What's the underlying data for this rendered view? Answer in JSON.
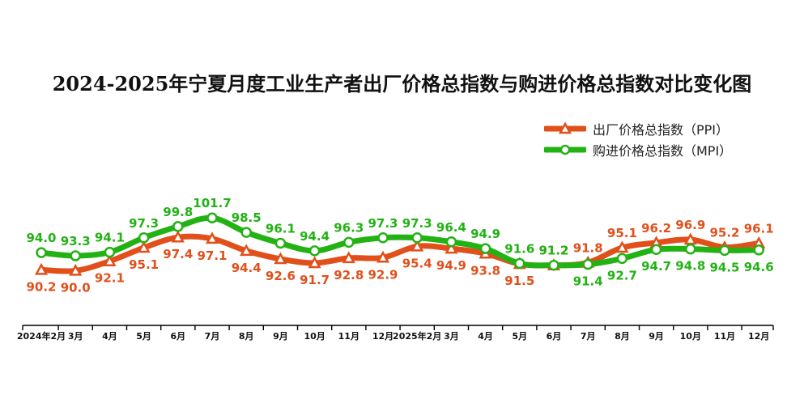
{
  "chart_data": {
    "type": "line",
    "title": "2024-2025年宁夏月度工业生产者出厂价格总指数与购进价格总指数对比变化图",
    "xlabel": "",
    "ylabel": "",
    "categories": [
      "2024年2月",
      "3月",
      "4月",
      "5月",
      "6月",
      "7月",
      "8月",
      "9月",
      "10月",
      "11月",
      "12月",
      "2025年2月",
      "3月",
      "4月",
      "5月",
      "6月",
      "7月",
      "8月",
      "9月",
      "10月",
      "11月",
      "12月"
    ],
    "series": [
      {
        "name": "出厂价格总指数（PPI）",
        "marker": "triangle",
        "color": "#e1501b",
        "values": [
          90.2,
          90.0,
          92.1,
          95.1,
          97.4,
          97.1,
          94.4,
          92.6,
          91.7,
          92.8,
          92.9,
          95.4,
          94.9,
          93.8,
          91.5,
          91.2,
          91.8,
          95.1,
          96.2,
          96.9,
          95.2,
          96.1
        ]
      },
      {
        "name": "购进价格总指数（MPI）",
        "marker": "circle",
        "color": "#22b214",
        "values": [
          94.0,
          93.3,
          94.1,
          97.3,
          99.8,
          101.7,
          98.5,
          96.1,
          94.4,
          96.3,
          97.3,
          97.3,
          96.4,
          94.9,
          91.6,
          91.2,
          91.4,
          92.7,
          94.7,
          94.8,
          94.5,
          94.6
        ]
      }
    ],
    "legend_position": "top-right",
    "grid": false,
    "y_axis_visible": false
  }
}
